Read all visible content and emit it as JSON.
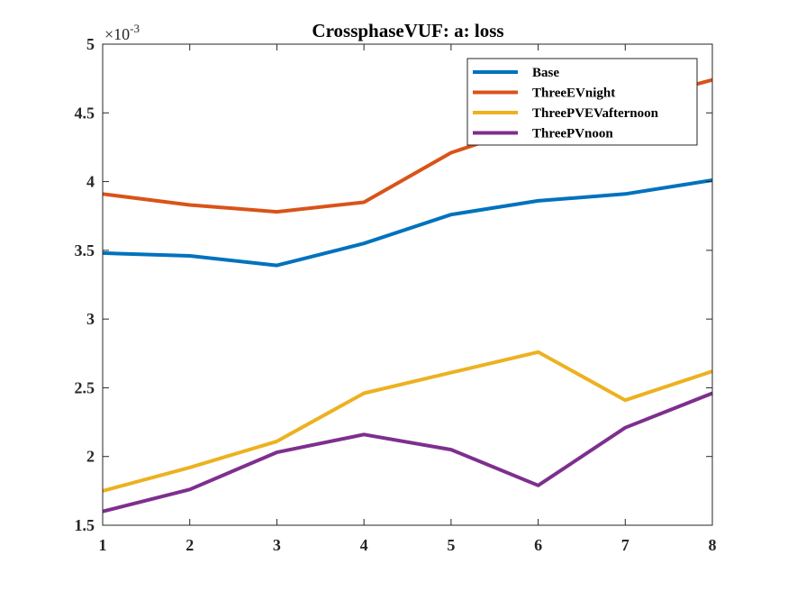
{
  "chart_data": {
    "type": "line",
    "title": "CrossphaseVUF: a: loss",
    "xlabel": "",
    "ylabel": "",
    "x": [
      1,
      2,
      3,
      4,
      5,
      6,
      7,
      8
    ],
    "xlim": [
      1,
      8
    ],
    "ylim": [
      1.5,
      5
    ],
    "xticks": [
      "1",
      "2",
      "3",
      "4",
      "5",
      "6",
      "7",
      "8"
    ],
    "yticks": [
      "1.5",
      "2",
      "2.5",
      "3",
      "3.5",
      "4",
      "4.5",
      "5"
    ],
    "y_exponent_base": "×10",
    "y_exponent_power": "-3",
    "grid": false,
    "legend_position": "top-right",
    "series": [
      {
        "name": "Base",
        "color": "#0072BD",
        "values": [
          3.48,
          3.46,
          3.39,
          3.55,
          3.76,
          3.86,
          3.91,
          4.01
        ]
      },
      {
        "name": "ThreeEVnight",
        "color": "#D95319",
        "values": [
          3.91,
          3.83,
          3.78,
          3.85,
          4.21,
          4.42,
          4.57,
          4.74
        ]
      },
      {
        "name": "ThreePVEVafternoon",
        "color": "#EDB120",
        "values": [
          1.75,
          1.92,
          2.11,
          2.46,
          2.61,
          2.76,
          2.41,
          2.62
        ]
      },
      {
        "name": "ThreePVnoon",
        "color": "#7E2F8E",
        "values": [
          1.6,
          1.76,
          2.03,
          2.16,
          2.05,
          1.79,
          2.21,
          2.46
        ]
      }
    ]
  }
}
